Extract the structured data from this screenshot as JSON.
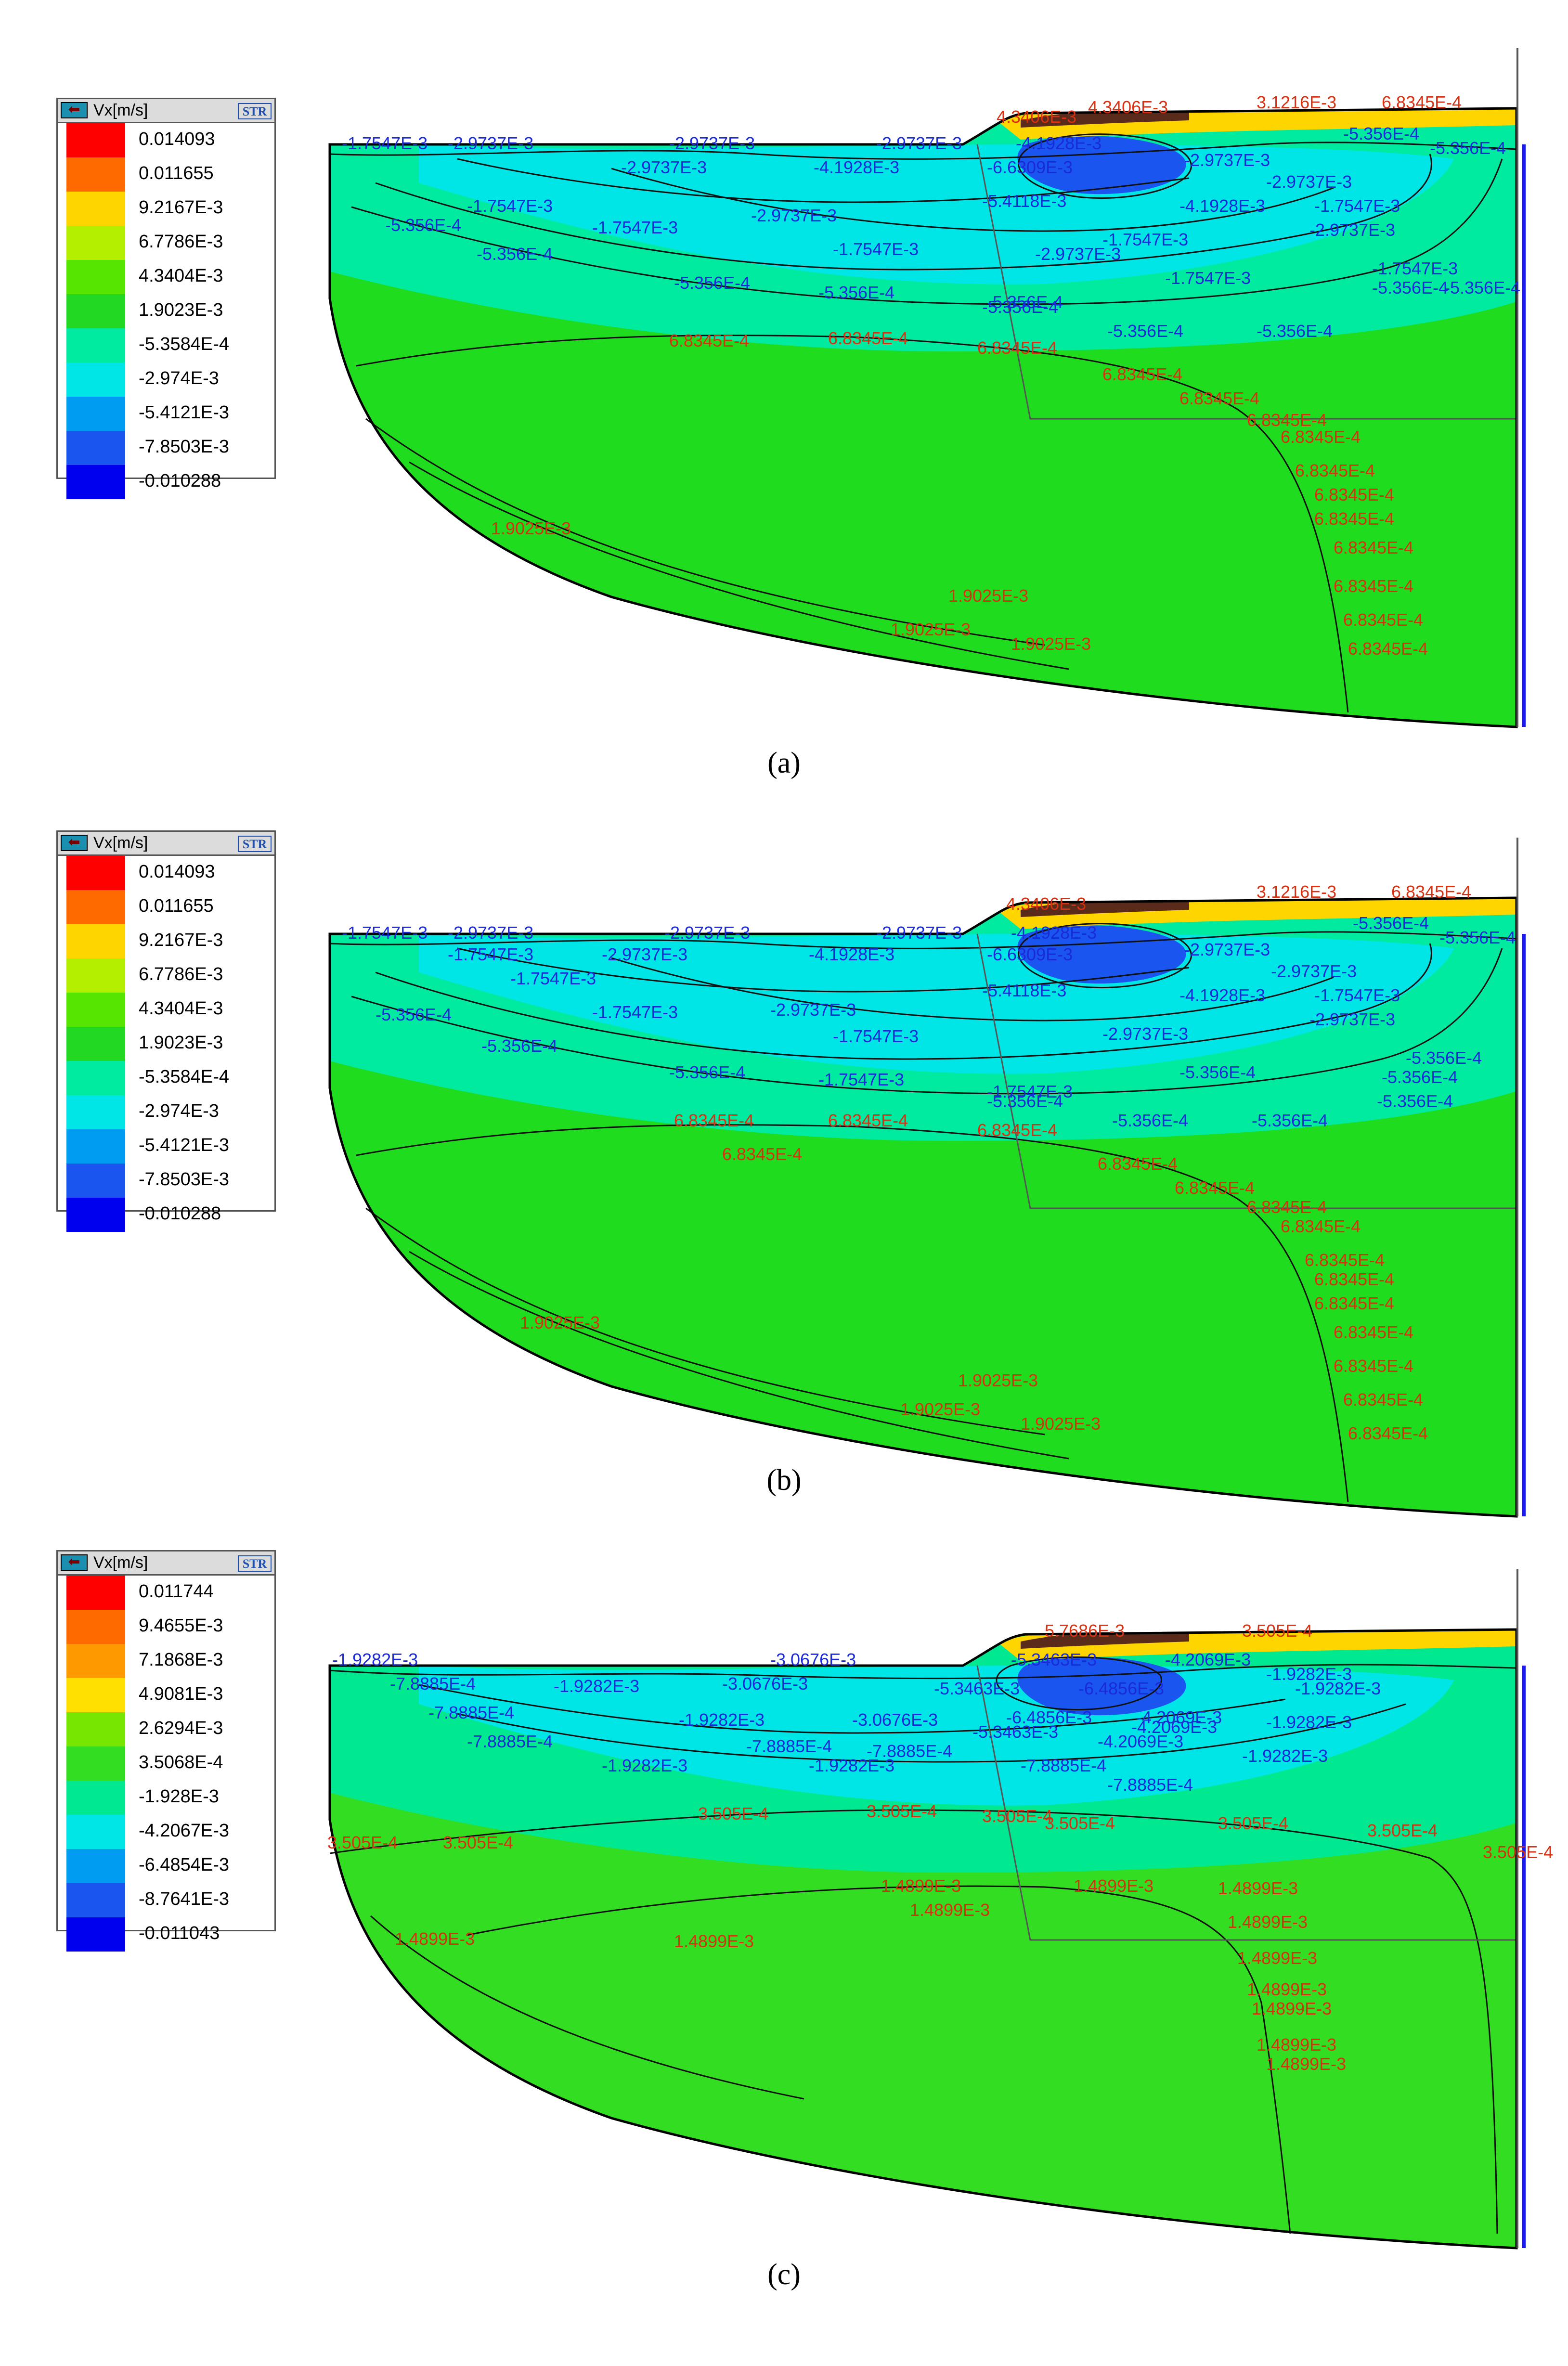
{
  "panels": [
    {
      "caption": "(a)",
      "legend": {
        "title": "Vx[m/s]",
        "badge": "STR",
        "levels": [
          {
            "value": "0.014093",
            "color": "#ff0000"
          },
          {
            "value": "0.011655",
            "color": "#ff6a00"
          },
          {
            "value": "9.2167E-3",
            "color": "#ffd500"
          },
          {
            "value": "6.7786E-3",
            "color": "#b5ef00"
          },
          {
            "value": "4.3404E-3",
            "color": "#55e500"
          },
          {
            "value": "1.9023E-3",
            "color": "#22d822"
          },
          {
            "value": "-5.3584E-4",
            "color": "#00eaa0"
          },
          {
            "value": "-2.974E-3",
            "color": "#00e5e5"
          },
          {
            "value": "-5.4121E-3",
            "color": "#009cf2"
          },
          {
            "value": "-7.8503E-3",
            "color": "#1a55f0"
          },
          {
            "value": "-0.010288",
            "color": "#0000ee"
          }
        ]
      },
      "labels": [
        {
          "t": "-1.7547E-3",
          "c": "blue"
        },
        {
          "t": "-2.9737E-3",
          "c": "blue"
        },
        {
          "t": "-2.9737E-3",
          "c": "blue"
        },
        {
          "t": "-2.9737E-3",
          "c": "blue"
        },
        {
          "t": "-4.1928E-3",
          "c": "blue"
        },
        {
          "t": "-5.356E-4",
          "c": "blue"
        },
        {
          "t": "-5.356E-4",
          "c": "blue"
        },
        {
          "t": "-2.9737E-3",
          "c": "blue"
        },
        {
          "t": "-4.1928E-3",
          "c": "blue"
        },
        {
          "t": "-6.6309E-3",
          "c": "blue"
        },
        {
          "t": "-2.9737E-3",
          "c": "blue"
        },
        {
          "t": "-2.9737E-3",
          "c": "blue"
        },
        {
          "t": "-1.7547E-3",
          "c": "blue"
        },
        {
          "t": "-5.4118E-3",
          "c": "blue"
        },
        {
          "t": "-4.1928E-3",
          "c": "blue"
        },
        {
          "t": "-1.7547E-3",
          "c": "blue"
        },
        {
          "t": "-5.356E-4",
          "c": "blue"
        },
        {
          "t": "-2.9737E-3",
          "c": "blue"
        },
        {
          "t": "-1.7547E-3",
          "c": "blue"
        },
        {
          "t": "-1.7547E-3",
          "c": "blue"
        },
        {
          "t": "-5.356E-4",
          "c": "blue"
        },
        {
          "t": "-1.7547E-3",
          "c": "blue"
        },
        {
          "t": "-2.9737E-3",
          "c": "blue"
        },
        {
          "t": "-2.9737E-3",
          "c": "blue"
        },
        {
          "t": "-5.356E-4",
          "c": "blue"
        },
        {
          "t": "-5.356E-4",
          "c": "blue"
        },
        {
          "t": "-5.356E-4",
          "c": "blue"
        },
        {
          "t": "-1.7547E-3",
          "c": "blue"
        },
        {
          "t": "-1.7547E-3",
          "c": "blue"
        },
        {
          "t": "-5.356E-4",
          "c": "blue"
        },
        {
          "t": "-5.356E-4",
          "c": "blue"
        },
        {
          "t": "-5.356E-4",
          "c": "blue"
        },
        {
          "t": "-5.356E-4",
          "c": "blue"
        },
        {
          "t": "-5.356E-4",
          "c": "blue"
        },
        {
          "t": "4.3406E-3",
          "c": "red"
        },
        {
          "t": "4.3406E-3",
          "c": "red"
        },
        {
          "t": "3.1216E-3",
          "c": "red"
        },
        {
          "t": "6.8345E-4",
          "c": "red"
        },
        {
          "t": "6.8345E-4",
          "c": "red"
        },
        {
          "t": "6.8345E-4",
          "c": "red"
        },
        {
          "t": "6.8345E-4",
          "c": "red"
        },
        {
          "t": "6.8345E-4",
          "c": "red"
        },
        {
          "t": "6.8345E-4",
          "c": "red"
        },
        {
          "t": "6.8345E-4",
          "c": "red"
        },
        {
          "t": "6.8345E-4",
          "c": "red"
        },
        {
          "t": "6.8345E-4",
          "c": "red"
        },
        {
          "t": "6.8345E-4",
          "c": "red"
        },
        {
          "t": "6.8345E-4",
          "c": "red"
        },
        {
          "t": "6.8345E-4",
          "c": "red"
        },
        {
          "t": "6.8345E-4",
          "c": "red"
        },
        {
          "t": "6.8345E-4",
          "c": "red"
        },
        {
          "t": "6.8345E-4",
          "c": "red"
        },
        {
          "t": "1.9025E-3",
          "c": "red"
        },
        {
          "t": "1.9025E-3",
          "c": "red"
        },
        {
          "t": "1.9025E-3",
          "c": "red"
        },
        {
          "t": "1.9025E-3",
          "c": "red"
        }
      ]
    },
    {
      "caption": "(b)",
      "legend": {
        "title": "Vx[m/s]",
        "badge": "STR",
        "levels": [
          {
            "value": "0.014093",
            "color": "#ff0000"
          },
          {
            "value": "0.011655",
            "color": "#ff6a00"
          },
          {
            "value": "9.2167E-3",
            "color": "#ffd500"
          },
          {
            "value": "6.7786E-3",
            "color": "#b5ef00"
          },
          {
            "value": "4.3404E-3",
            "color": "#55e500"
          },
          {
            "value": "1.9023E-3",
            "color": "#22d822"
          },
          {
            "value": "-5.3584E-4",
            "color": "#00eaa0"
          },
          {
            "value": "-2.974E-3",
            "color": "#00e5e5"
          },
          {
            "value": "-5.4121E-3",
            "color": "#009cf2"
          },
          {
            "value": "-7.8503E-3",
            "color": "#1a55f0"
          },
          {
            "value": "-0.010288",
            "color": "#0000ee"
          }
        ]
      },
      "labels": [
        {
          "t": "-1.7547E-3",
          "c": "blue"
        },
        {
          "t": "-2.9737E-3",
          "c": "blue"
        },
        {
          "t": "-2.9737E-3",
          "c": "blue"
        },
        {
          "t": "-2.9737E-3",
          "c": "blue"
        },
        {
          "t": "-4.1928E-3",
          "c": "blue"
        },
        {
          "t": "-5.356E-4",
          "c": "blue"
        },
        {
          "t": "-5.356E-4",
          "c": "blue"
        },
        {
          "t": "-1.7547E-3",
          "c": "blue"
        },
        {
          "t": "-2.9737E-3",
          "c": "blue"
        },
        {
          "t": "-4.1928E-3",
          "c": "blue"
        },
        {
          "t": "-6.6309E-3",
          "c": "blue"
        },
        {
          "t": "-2.9737E-3",
          "c": "blue"
        },
        {
          "t": "-2.9737E-3",
          "c": "blue"
        },
        {
          "t": "-1.7547E-3",
          "c": "blue"
        },
        {
          "t": "-5.4118E-3",
          "c": "blue"
        },
        {
          "t": "-4.1928E-3",
          "c": "blue"
        },
        {
          "t": "-1.7547E-3",
          "c": "blue"
        },
        {
          "t": "-5.356E-4",
          "c": "blue"
        },
        {
          "t": "-2.9737E-3",
          "c": "blue"
        },
        {
          "t": "-1.7547E-3",
          "c": "blue"
        },
        {
          "t": "-1.7547E-3",
          "c": "blue"
        },
        {
          "t": "-2.9737E-3",
          "c": "blue"
        },
        {
          "t": "-2.9737E-3",
          "c": "blue"
        },
        {
          "t": "-5.356E-4",
          "c": "blue"
        },
        {
          "t": "-5.356E-4",
          "c": "blue"
        },
        {
          "t": "-5.356E-4",
          "c": "blue"
        },
        {
          "t": "-1.7547E-3",
          "c": "blue"
        },
        {
          "t": "-1.7547E-3",
          "c": "blue"
        },
        {
          "t": "-5.356E-4",
          "c": "blue"
        },
        {
          "t": "-5.356E-4",
          "c": "blue"
        },
        {
          "t": "-5.356E-4",
          "c": "blue"
        },
        {
          "t": "-5.356E-4",
          "c": "blue"
        },
        {
          "t": "-5.356E-4",
          "c": "blue"
        },
        {
          "t": "-5.356E-4",
          "c": "blue"
        },
        {
          "t": "4.3406E-3",
          "c": "red"
        },
        {
          "t": "3.1216E-3",
          "c": "red"
        },
        {
          "t": "6.8345E-4",
          "c": "red"
        },
        {
          "t": "6.8345E-4",
          "c": "red"
        },
        {
          "t": "6.8345E-4",
          "c": "red"
        },
        {
          "t": "6.8345E-4",
          "c": "red"
        },
        {
          "t": "6.8345E-4",
          "c": "red"
        },
        {
          "t": "6.8345E-4",
          "c": "red"
        },
        {
          "t": "6.8345E-4",
          "c": "red"
        },
        {
          "t": "6.8345E-4",
          "c": "red"
        },
        {
          "t": "6.8345E-4",
          "c": "red"
        },
        {
          "t": "6.8345E-4",
          "c": "red"
        },
        {
          "t": "6.8345E-4",
          "c": "red"
        },
        {
          "t": "6.8345E-4",
          "c": "red"
        },
        {
          "t": "6.8345E-4",
          "c": "red"
        },
        {
          "t": "6.8345E-4",
          "c": "red"
        },
        {
          "t": "6.8345E-4",
          "c": "red"
        },
        {
          "t": "6.8345E-4",
          "c": "red"
        },
        {
          "t": "1.9025E-3",
          "c": "red"
        },
        {
          "t": "1.9025E-3",
          "c": "red"
        },
        {
          "t": "1.9025E-3",
          "c": "red"
        },
        {
          "t": "1.9025E-3",
          "c": "red"
        }
      ]
    },
    {
      "caption": "(c)",
      "legend": {
        "title": "Vx[m/s]",
        "badge": "STR",
        "levels": [
          {
            "value": "0.011744",
            "color": "#ff0000"
          },
          {
            "value": "9.4655E-3",
            "color": "#ff6a00"
          },
          {
            "value": "7.1868E-3",
            "color": "#ff9900"
          },
          {
            "value": "4.9081E-3",
            "color": "#ffe000"
          },
          {
            "value": "2.6294E-3",
            "color": "#77e600"
          },
          {
            "value": "3.5068E-4",
            "color": "#33dd22"
          },
          {
            "value": "-1.928E-3",
            "color": "#00e890"
          },
          {
            "value": "-4.2067E-3",
            "color": "#00e5e5"
          },
          {
            "value": "-6.4854E-3",
            "color": "#009cf2"
          },
          {
            "value": "-8.7641E-3",
            "color": "#1a55f0"
          },
          {
            "value": "-0.011043",
            "color": "#0000ee"
          }
        ]
      },
      "labels": [
        {
          "t": "-1.9282E-3",
          "c": "blue"
        },
        {
          "t": "-3.0676E-3",
          "c": "blue"
        },
        {
          "t": "-5.3463E-3",
          "c": "blue"
        },
        {
          "t": "-4.2069E-3",
          "c": "blue"
        },
        {
          "t": "-7.8885E-4",
          "c": "blue"
        },
        {
          "t": "-1.9282E-3",
          "c": "blue"
        },
        {
          "t": "-3.0676E-3",
          "c": "blue"
        },
        {
          "t": "-5.3463E-3",
          "c": "blue"
        },
        {
          "t": "-6.4856E-3",
          "c": "blue"
        },
        {
          "t": "-1.9282E-3",
          "c": "blue"
        },
        {
          "t": "-6.4856E-3",
          "c": "blue"
        },
        {
          "t": "-4.2069E-3",
          "c": "blue"
        },
        {
          "t": "-1.9282E-3",
          "c": "blue"
        },
        {
          "t": "-7.8885E-4",
          "c": "blue"
        },
        {
          "t": "-1.9282E-3",
          "c": "blue"
        },
        {
          "t": "-3.0676E-3",
          "c": "blue"
        },
        {
          "t": "-5.3463E-3",
          "c": "blue"
        },
        {
          "t": "-4.2069E-3",
          "c": "blue"
        },
        {
          "t": "-4.2069E-3",
          "c": "blue"
        },
        {
          "t": "-1.9282E-3",
          "c": "blue"
        },
        {
          "t": "-7.8885E-4",
          "c": "blue"
        },
        {
          "t": "-7.8885E-4",
          "c": "blue"
        },
        {
          "t": "-7.8885E-4",
          "c": "blue"
        },
        {
          "t": "-1.9282E-3",
          "c": "blue"
        },
        {
          "t": "-1.9282E-3",
          "c": "blue"
        },
        {
          "t": "-1.9282E-3",
          "c": "blue"
        },
        {
          "t": "-7.8885E-4",
          "c": "blue"
        },
        {
          "t": "-7.8885E-4",
          "c": "blue"
        },
        {
          "t": "5.7686E-3",
          "c": "red"
        },
        {
          "t": "3.505E-4",
          "c": "red"
        },
        {
          "t": "3.505E-4",
          "c": "red"
        },
        {
          "t": "3.505E-4",
          "c": "red"
        },
        {
          "t": "3.505E-4",
          "c": "red"
        },
        {
          "t": "3.505E-4",
          "c": "red"
        },
        {
          "t": "3.505E-4",
          "c": "red"
        },
        {
          "t": "3.505E-4",
          "c": "red"
        },
        {
          "t": "3.505E-4",
          "c": "red"
        },
        {
          "t": "3.505E-4",
          "c": "red"
        },
        {
          "t": "3.505E-4",
          "c": "red"
        },
        {
          "t": "1.4899E-3",
          "c": "red"
        },
        {
          "t": "1.4899E-3",
          "c": "red"
        },
        {
          "t": "1.4899E-3",
          "c": "red"
        },
        {
          "t": "1.4899E-3",
          "c": "red"
        },
        {
          "t": "1.4899E-3",
          "c": "red"
        },
        {
          "t": "1.4899E-3",
          "c": "red"
        },
        {
          "t": "1.4899E-3",
          "c": "red"
        },
        {
          "t": "1.4899E-3",
          "c": "red"
        },
        {
          "t": "1.4899E-3",
          "c": "red"
        },
        {
          "t": "1.4899E-3",
          "c": "red"
        },
        {
          "t": "1.4899E-3",
          "c": "red"
        },
        {
          "t": "1.4899E-3",
          "c": "red"
        }
      ]
    }
  ]
}
